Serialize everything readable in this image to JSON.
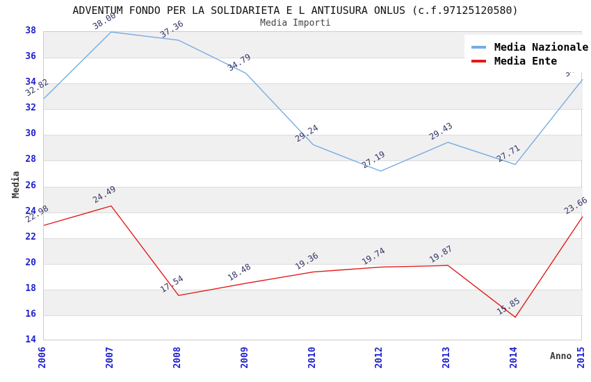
{
  "title": "ADVENTUM FONDO PER LA SOLIDARIETA E L ANTIUSURA ONLUS (c.f.97125120580)",
  "subtitle": "Media Importi",
  "colors": {
    "national_line": "#76ACE2",
    "entity_line": "#E21B1B",
    "band_gray": "#f0f0f0",
    "gridline": "#dcdcdc",
    "tick_label": "#2020cf",
    "data_label": "#333366",
    "axis_label": "#3a3a3a"
  },
  "chart_data": {
    "type": "line",
    "categories": [
      "2006",
      "2007",
      "2008",
      "2009",
      "2010",
      "2012",
      "2013",
      "2014",
      "2015"
    ],
    "series": [
      {
        "name": "Media Nazionale",
        "color": "#76ACE2",
        "values": [
          32.82,
          38.0,
          37.36,
          34.79,
          29.24,
          27.19,
          29.43,
          27.71,
          34.32
        ]
      },
      {
        "name": "Media Ente",
        "color": "#E21B1B",
        "values": [
          22.98,
          24.49,
          17.54,
          18.48,
          19.36,
          19.74,
          19.87,
          15.85,
          23.66
        ]
      }
    ],
    "title": "ADVENTUM FONDO PER LA SOLIDARIETA E L ANTIUSURA ONLUS (c.f.97125120580)",
    "subtitle": "Media Importi",
    "xlabel": "Anno",
    "ylabel": "Media",
    "ylim": [
      14,
      38
    ],
    "ytick_step": 2,
    "grid": "horizontal-bands",
    "legend_position": "top-right",
    "data_label_format": "2-decimals"
  }
}
